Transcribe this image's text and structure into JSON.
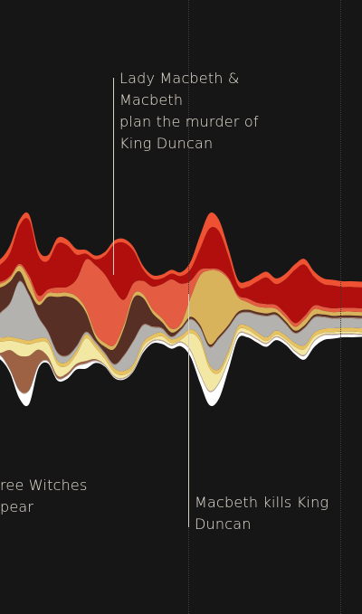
{
  "chart_data": {
    "type": "area",
    "layout": "streamgraph",
    "x": [
      0,
      1,
      2,
      3,
      4,
      5,
      6,
      7,
      8,
      9,
      10,
      11,
      12,
      13,
      14,
      15,
      16,
      17,
      18,
      19,
      20,
      21,
      22,
      23,
      24,
      25,
      26,
      27,
      28,
      29,
      30,
      31,
      32,
      33,
      34,
      35,
      36,
      37,
      38,
      39,
      40
    ],
    "series": [
      {
        "color": "#ffffff",
        "values": [
          3,
          4,
          3,
          8,
          14,
          3,
          2,
          2,
          3,
          3,
          5,
          2,
          1,
          1,
          1,
          1,
          2,
          2,
          3,
          3,
          4,
          6,
          9,
          14,
          16,
          9,
          4,
          3,
          3,
          3,
          3,
          3,
          3,
          4,
          6,
          5,
          4,
          3,
          3,
          2,
          2
        ]
      },
      {
        "color": "#c4a6a0",
        "values": [
          1,
          1,
          1,
          1,
          1,
          1,
          1,
          1,
          1,
          1,
          1,
          1,
          1,
          1,
          1,
          1,
          1,
          1,
          1,
          1,
          1,
          1,
          1,
          1,
          1,
          1,
          1,
          1,
          1,
          1,
          1,
          1,
          1,
          1,
          1,
          1,
          1,
          1,
          1,
          1,
          1
        ]
      },
      {
        "color": "#9c6243",
        "values": [
          0,
          2,
          20,
          36,
          36,
          16,
          4,
          2,
          2,
          2,
          2,
          1,
          0,
          0,
          0,
          0,
          0,
          0,
          0,
          0,
          0,
          0,
          0,
          0,
          0,
          0,
          0,
          0,
          0,
          0,
          0,
          0,
          0,
          0,
          0,
          0,
          0,
          0,
          0,
          0,
          0
        ]
      },
      {
        "color": "#f3e7a4",
        "values": [
          15,
          12,
          10,
          14,
          12,
          8,
          14,
          12,
          8,
          10,
          24,
          12,
          6,
          4,
          3,
          2,
          4,
          2,
          4,
          2,
          2,
          18,
          34,
          24,
          10,
          6,
          4,
          4,
          3,
          2,
          2,
          2,
          4,
          6,
          4,
          2,
          2,
          2,
          2,
          2,
          2
        ]
      },
      {
        "color": "#e8c160",
        "values": [
          4,
          4,
          4,
          4,
          4,
          4,
          4,
          4,
          4,
          4,
          4,
          4,
          4,
          4,
          4,
          4,
          4,
          4,
          4,
          4,
          4,
          4,
          4,
          4,
          4,
          4,
          4,
          4,
          4,
          4,
          4,
          4,
          4,
          4,
          4,
          4,
          4,
          4,
          4,
          4,
          4
        ]
      },
      {
        "color": "#b3b2ae",
        "values": [
          12,
          26,
          35,
          60,
          48,
          22,
          8,
          8,
          6,
          4,
          2,
          2,
          2,
          4,
          16,
          24,
          18,
          8,
          4,
          2,
          6,
          10,
          10,
          18,
          32,
          24,
          12,
          14,
          18,
          22,
          16,
          12,
          10,
          18,
          16,
          12,
          10,
          10,
          10,
          10,
          10
        ]
      },
      {
        "color": "#a87f68",
        "values": [
          1,
          1,
          1,
          1,
          1,
          1,
          1,
          1,
          1,
          1,
          1,
          1,
          1,
          1,
          1,
          1,
          1,
          1,
          1,
          1,
          1,
          1,
          1,
          1,
          1,
          1,
          1,
          1,
          1,
          1,
          1,
          1,
          1,
          1,
          1,
          1,
          1,
          1,
          1,
          1,
          1
        ]
      },
      {
        "color": "#582f25",
        "values": [
          38,
          26,
          22,
          10,
          4,
          12,
          36,
          58,
          62,
          48,
          20,
          4,
          6,
          16,
          28,
          44,
          28,
          14,
          6,
          4,
          2,
          2,
          2,
          2,
          2,
          2,
          2,
          2,
          2,
          2,
          2,
          2,
          2,
          2,
          2,
          2,
          2,
          2,
          2,
          2,
          2
        ]
      },
      {
        "color": "#d8b35c",
        "values": [
          4,
          4,
          4,
          6,
          12,
          4,
          4,
          4,
          4,
          4,
          4,
          4,
          4,
          4,
          4,
          4,
          4,
          4,
          4,
          4,
          4,
          20,
          52,
          78,
          68,
          48,
          16,
          8,
          6,
          6,
          4,
          4,
          4,
          6,
          6,
          4,
          4,
          4,
          4,
          4,
          4
        ]
      },
      {
        "color": "#e45d43",
        "values": [
          2,
          2,
          2,
          2,
          4,
          6,
          4,
          6,
          6,
          18,
          52,
          72,
          72,
          58,
          26,
          12,
          14,
          24,
          36,
          52,
          42,
          18,
          6,
          2,
          2,
          2,
          2,
          4,
          4,
          4,
          4,
          4,
          4,
          4,
          4,
          4,
          4,
          4,
          4,
          4,
          4
        ]
      },
      {
        "color": "#b00f0d",
        "values": [
          12,
          18,
          24,
          40,
          58,
          42,
          30,
          46,
          44,
          26,
          6,
          6,
          20,
          48,
          60,
          34,
          12,
          8,
          6,
          6,
          8,
          12,
          22,
          42,
          40,
          22,
          10,
          12,
          22,
          28,
          22,
          36,
          56,
          54,
          30,
          24,
          24,
          22,
          22,
          22,
          22
        ]
      },
      {
        "color": "#ee5232",
        "values": [
          8,
          6,
          8,
          6,
          6,
          6,
          6,
          6,
          6,
          6,
          4,
          4,
          4,
          4,
          4,
          4,
          4,
          4,
          4,
          4,
          4,
          8,
          14,
          16,
          12,
          8,
          6,
          6,
          6,
          6,
          6,
          6,
          6,
          6,
          6,
          6,
          6,
          6,
          6,
          6,
          6
        ]
      }
    ],
    "annotations": [
      {
        "text": "Lady Macbeth &\nMacbeth\nplan the murder of\nKing Duncan",
        "x": 12
      },
      {
        "text": "Macbeth kills King\nDuncan",
        "x": 20.5
      },
      {
        "text": "ree Witches\npear",
        "x": 0
      }
    ]
  },
  "labels": {
    "ann1": "Lady Macbeth &\nMacbeth\nplan the murder of\nKing Duncan",
    "ann2": "Macbeth kills King\nDuncan",
    "ann3": "ree Witches\npear"
  }
}
